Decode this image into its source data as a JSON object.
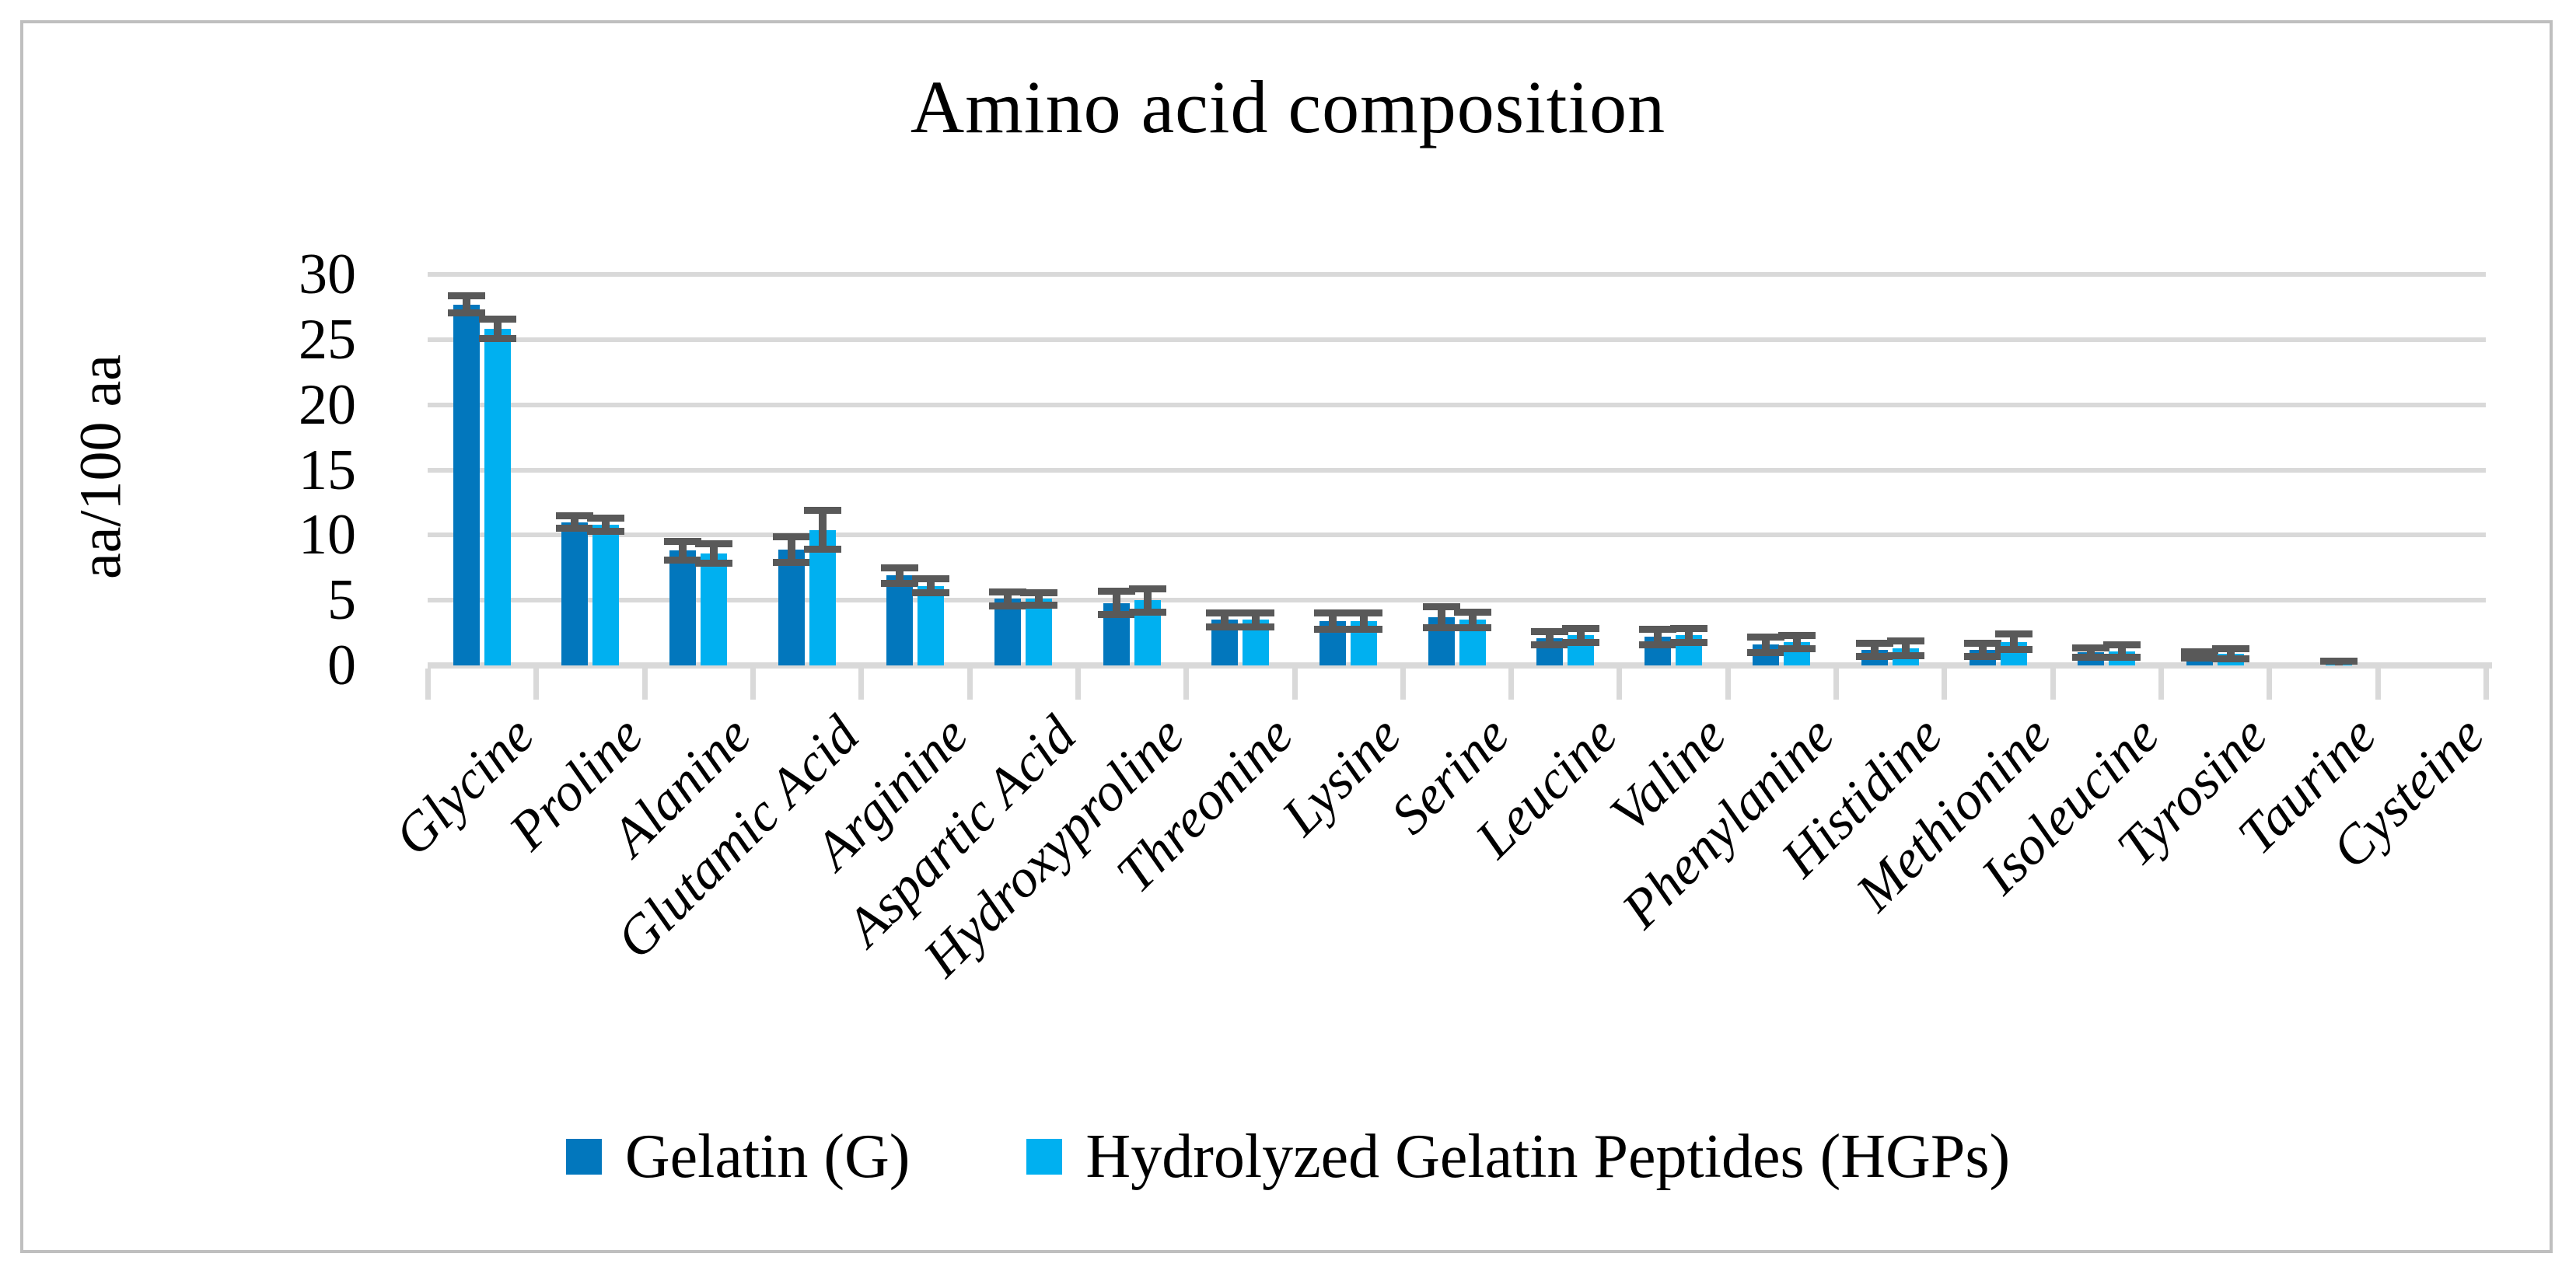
{
  "figure": {
    "title": "Amino acid composition"
  },
  "y_axis": {
    "label": "aa/100 aa",
    "ticks": [
      0,
      5,
      10,
      15,
      20,
      25,
      30
    ]
  },
  "legend": {
    "items": [
      {
        "label": "Gelatin (G)",
        "color": "#0277BD"
      },
      {
        "label": "Hydrolyzed Gelatin Peptides (HGPs)",
        "color": "#00B0F0"
      }
    ]
  },
  "colors": {
    "series1": "#0277BD",
    "series2": "#00B0F0",
    "error_bar": "#595959",
    "gridline": "#d9d9d9",
    "figure_border": "#bfbfbf",
    "text": "#000000"
  },
  "chart_data": {
    "type": "bar",
    "title": "Amino acid composition",
    "xlabel": "",
    "ylabel": "aa/100 aa",
    "ylim": [
      0,
      30
    ],
    "y_ticks": [
      0,
      5,
      10,
      15,
      20,
      25,
      30
    ],
    "grid": true,
    "legend_position": "bottom",
    "categories": [
      "Glycine",
      "Proline",
      "Alanine",
      "Glutamic Acid",
      "Arginine",
      "Aspartic Acid",
      "Hydroxyproline",
      "Threonine",
      "Lysine",
      "Serine",
      "Leucine",
      "Valine",
      "Phenylanine",
      "Histidine",
      "Methionine",
      "Isoleucine",
      "Tyrosine",
      "Taurine",
      "Cysteine"
    ],
    "series": [
      {
        "name": "Gelatin (G)",
        "color": "#0277BD",
        "values": [
          27.7,
          11.0,
          8.8,
          8.9,
          6.9,
          5.1,
          4.8,
          3.5,
          3.4,
          3.7,
          2.1,
          2.2,
          1.6,
          1.2,
          1.2,
          1.0,
          0.8,
          0.0,
          0.0
        ],
        "errors": [
          0.65,
          0.5,
          0.7,
          1.0,
          0.6,
          0.55,
          0.9,
          0.55,
          0.6,
          0.8,
          0.5,
          0.6,
          0.6,
          0.5,
          0.5,
          0.35,
          0.25,
          0.0,
          0.0
        ]
      },
      {
        "name": "Hydrolyzed Gelatin Peptides (HGPs)",
        "color": "#00B0F0",
        "values": [
          25.8,
          10.8,
          8.6,
          10.4,
          6.1,
          5.1,
          5.0,
          3.5,
          3.4,
          3.5,
          2.3,
          2.3,
          1.8,
          1.3,
          1.8,
          1.1,
          0.9,
          0.1,
          0.0
        ],
        "errors": [
          0.75,
          0.5,
          0.75,
          1.5,
          0.55,
          0.5,
          0.9,
          0.55,
          0.6,
          0.6,
          0.55,
          0.55,
          0.5,
          0.55,
          0.6,
          0.5,
          0.4,
          0.2,
          0.0
        ]
      }
    ]
  }
}
